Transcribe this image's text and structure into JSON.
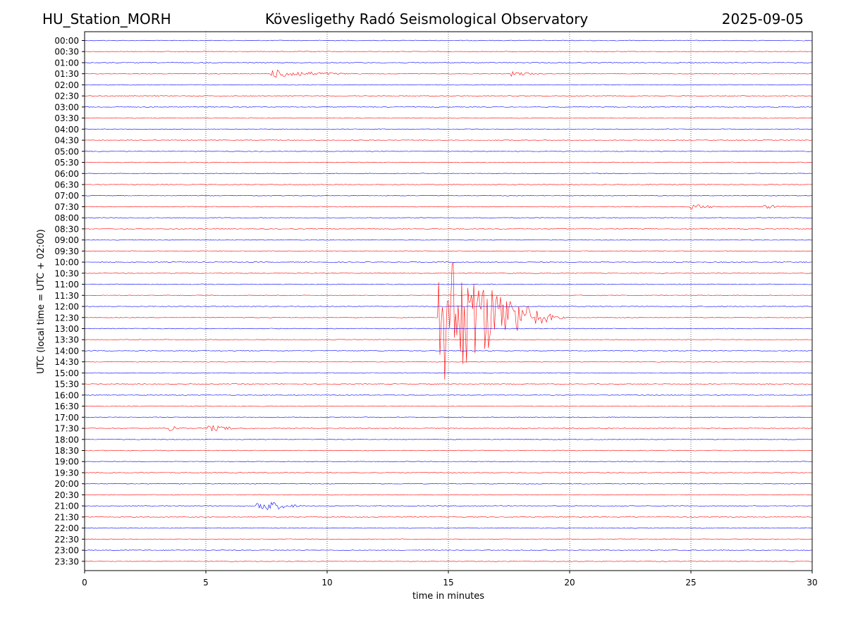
{
  "header": {
    "station": "HU_Station_MORH",
    "observatory": "Kövesligethy Radó Seismological Observatory",
    "date": "2025-09-05"
  },
  "chart_data": {
    "type": "line",
    "title": "Kövesligethy Radó Seismological Observatory",
    "xlabel": "time in minutes",
    "ylabel": "UTC (local time = UTC + 02:00)",
    "xlim": [
      0,
      30
    ],
    "x_ticks": [
      0,
      5,
      10,
      15,
      20,
      25,
      30
    ],
    "grid": "vertical dotted at x ticks",
    "row_labels": [
      "00:00",
      "00:30",
      "01:00",
      "01:30",
      "02:00",
      "02:30",
      "03:00",
      "03:30",
      "04:00",
      "04:30",
      "05:00",
      "05:30",
      "06:00",
      "06:30",
      "07:00",
      "07:30",
      "08:00",
      "08:30",
      "09:00",
      "09:30",
      "10:00",
      "10:30",
      "11:00",
      "11:30",
      "12:00",
      "12:30",
      "13:00",
      "13:30",
      "14:00",
      "14:30",
      "15:00",
      "15:30",
      "16:00",
      "16:30",
      "17:00",
      "17:30",
      "18:00",
      "18:30",
      "19:00",
      "19:30",
      "20:00",
      "20:30",
      "21:00",
      "21:30",
      "22:00",
      "22:30",
      "23:00",
      "23:30"
    ],
    "row_colors": [
      "#0000ff",
      "#ff0000"
    ],
    "events": [
      {
        "row": "01:30",
        "start_min": 7.7,
        "end_min": 11.5,
        "amplitude": 0.35
      },
      {
        "row": "01:30",
        "start_min": 17.6,
        "end_min": 19.0,
        "amplitude": 0.2
      },
      {
        "row": "07:30",
        "start_min": 25.0,
        "end_min": 26.5,
        "amplitude": 0.25
      },
      {
        "row": "07:30",
        "start_min": 28.0,
        "end_min": 29.5,
        "amplitude": 0.15
      },
      {
        "row": "12:30",
        "start_min": 14.6,
        "end_min": 20.0,
        "amplitude": 6.5
      },
      {
        "row": "17:30",
        "start_min": 3.5,
        "end_min": 4.3,
        "amplitude": 0.3
      },
      {
        "row": "17:30",
        "start_min": 5.1,
        "end_min": 7.0,
        "amplitude": 0.25
      },
      {
        "row": "21:00",
        "start_min": 7.1,
        "end_min": 9.3,
        "amplitude": 0.6
      }
    ]
  }
}
